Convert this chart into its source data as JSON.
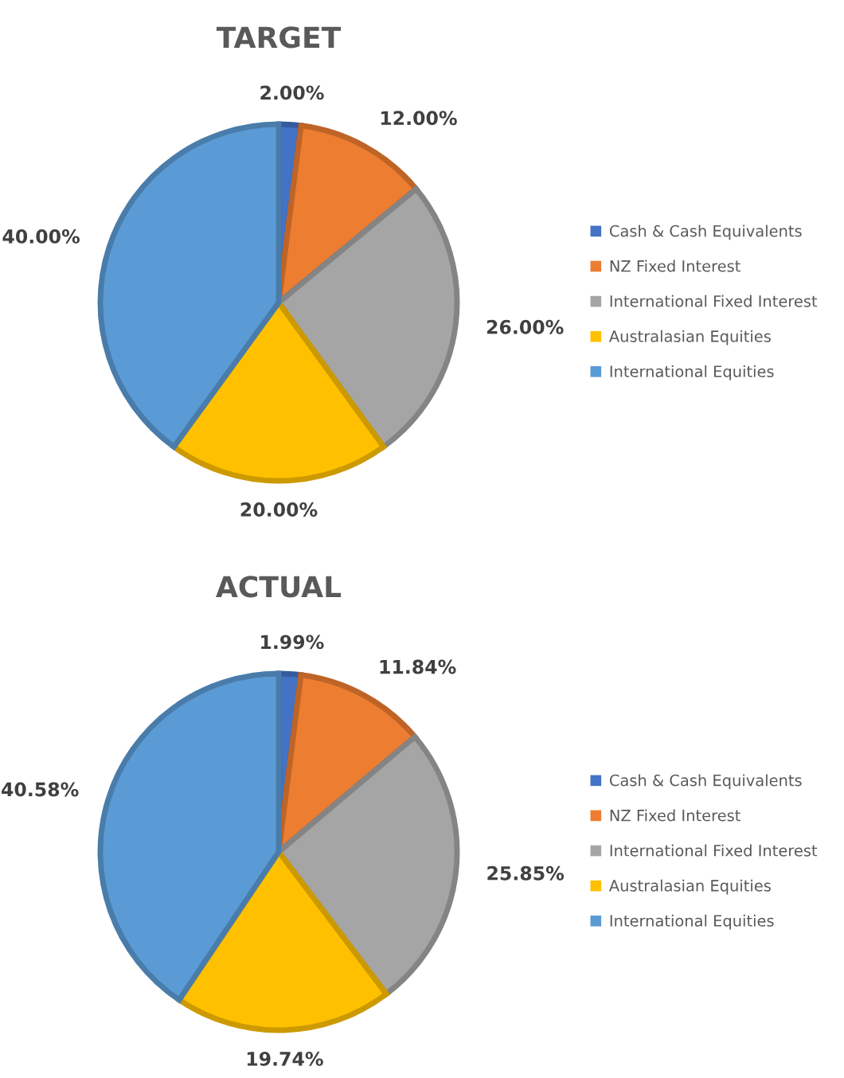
{
  "chart_data": [
    {
      "type": "pie",
      "title": "TARGET",
      "categories": [
        "Cash & Cash Equivalents",
        "NZ Fixed Interest",
        "International Fixed Interest",
        "Australasian Equities",
        "International Equities"
      ],
      "values": [
        2,
        12,
        26,
        20,
        40
      ],
      "value_labels": [
        "2.00%",
        "12.00%",
        "26.00%",
        "20.00%",
        "40.00%"
      ],
      "colors": [
        "#4472c4",
        "#ed7d31",
        "#a5a5a5",
        "#ffc000",
        "#5b9bd5"
      ],
      "legend": "right"
    },
    {
      "type": "pie",
      "title": "ACTUAL",
      "categories": [
        "Cash & Cash Equivalents",
        "NZ Fixed Interest",
        "International Fixed Interest",
        "Australasian Equities",
        "International Equities"
      ],
      "values": [
        1.99,
        11.84,
        25.85,
        19.74,
        40.58
      ],
      "value_labels": [
        "1.99%",
        "11.84%",
        "25.85%",
        "19.74%",
        "40.58%"
      ],
      "colors": [
        "#4472c4",
        "#ed7d31",
        "#a5a5a5",
        "#ffc000",
        "#5b9bd5"
      ],
      "legend": "right"
    }
  ]
}
